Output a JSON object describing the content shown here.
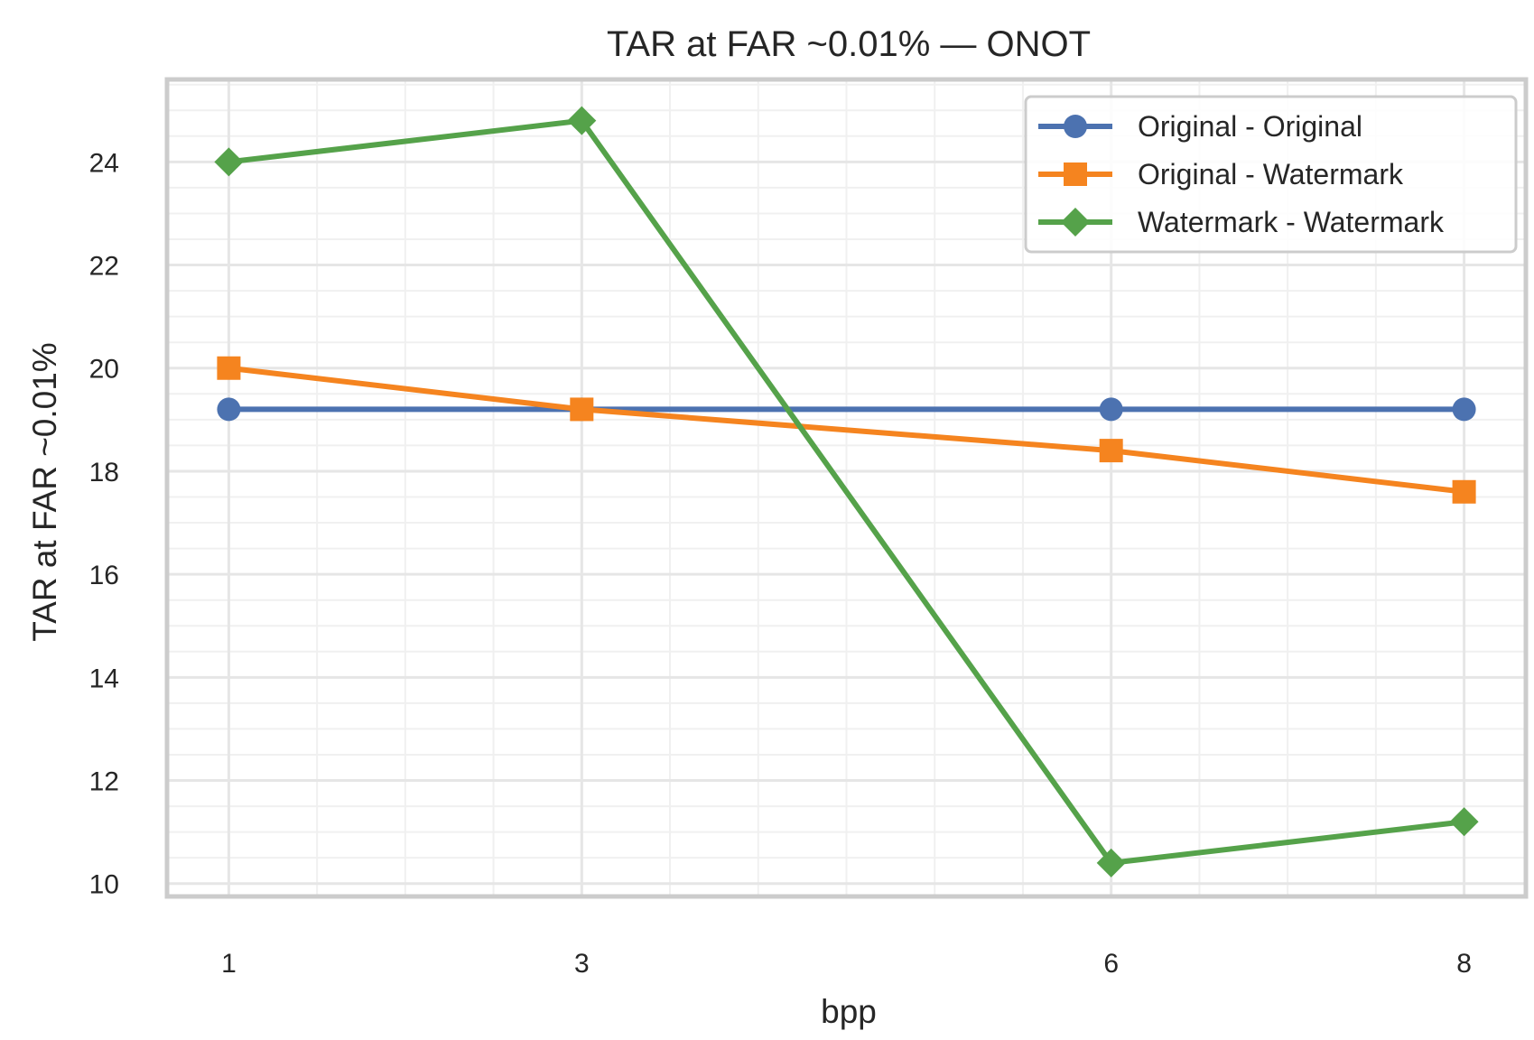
{
  "chart_data": {
    "type": "line",
    "title": "TAR at FAR ~0.01% — ONOT",
    "xlabel": "bpp",
    "ylabel": "TAR at FAR ~0.01%",
    "x": [
      1,
      3,
      6,
      8
    ],
    "x_ticks": [
      "1",
      "3",
      "6",
      "8"
    ],
    "y_ticks": [
      "10",
      "12",
      "14",
      "16",
      "18",
      "20",
      "22",
      "24"
    ],
    "xlim": [
      0.65,
      8.35
    ],
    "ylim": [
      9.75,
      25.6
    ],
    "grid": true,
    "legend_position": "top-right",
    "series": [
      {
        "name": "Original - Original",
        "marker": "circle",
        "color": "#4c72b0",
        "values": [
          19.2,
          19.2,
          19.2,
          19.2
        ]
      },
      {
        "name": "Original - Watermark",
        "marker": "square",
        "color": "#f5841f",
        "values": [
          20.0,
          19.2,
          18.4,
          17.6
        ]
      },
      {
        "name": "Watermark - Watermark",
        "marker": "diamond",
        "color": "#55a24a",
        "values": [
          24.0,
          24.8,
          10.4,
          11.2
        ]
      }
    ]
  }
}
